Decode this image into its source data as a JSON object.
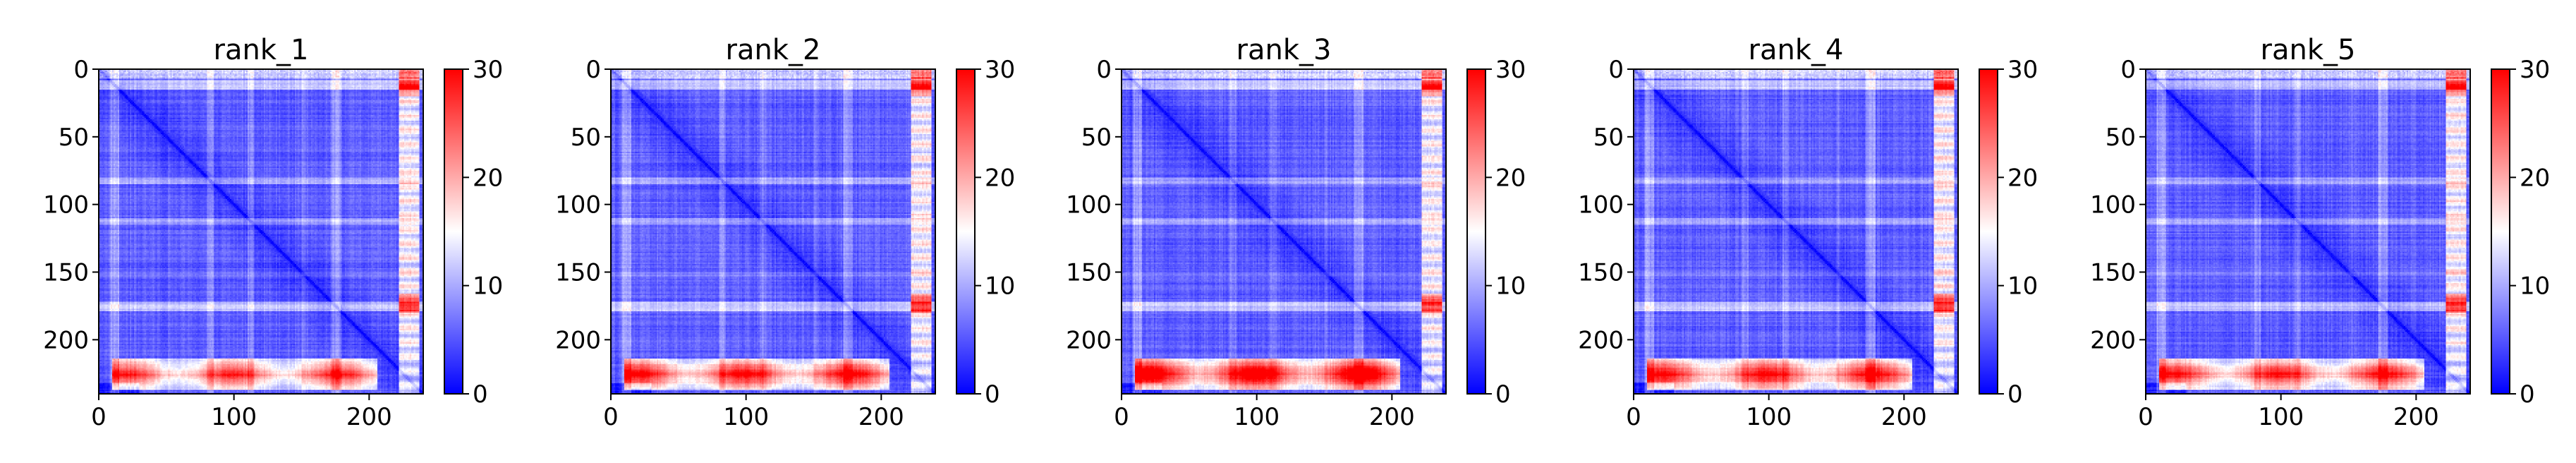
{
  "figure": {
    "panels": [
      {
        "title": "rank_1"
      },
      {
        "title": "rank_2"
      },
      {
        "title": "rank_3"
      },
      {
        "title": "rank_4"
      },
      {
        "title": "rank_5"
      }
    ],
    "colormap": {
      "name": "bwr",
      "low": "#0000ff",
      "mid": "#ffffff",
      "high": "#ff0000"
    }
  },
  "chart_data": [
    {
      "type": "heatmap",
      "title": "rank_1",
      "xlabel": "",
      "ylabel": "",
      "xlim": [
        0,
        240
      ],
      "ylim": [
        240,
        0
      ],
      "xticks": [
        0,
        100,
        200
      ],
      "yticks": [
        0,
        50,
        100,
        150,
        200
      ],
      "colorbar": {
        "range": [
          0,
          30
        ],
        "ticks": [
          0,
          10,
          20,
          30
        ]
      },
      "matrix_size": 240,
      "pattern": "pairwise distance map: blue diagonal (~0), red band rows ~215-235 reaching ~20-24, white stripes near rows 10, 80, 110, 175 and columns ~225-235"
    },
    {
      "type": "heatmap",
      "title": "rank_2",
      "xlabel": "",
      "ylabel": "",
      "xlim": [
        0,
        240
      ],
      "ylim": [
        240,
        0
      ],
      "xticks": [
        0,
        100,
        200
      ],
      "yticks": [
        0,
        50,
        100,
        150,
        200
      ],
      "colorbar": {
        "range": [
          0,
          30
        ],
        "ticks": [
          0,
          10,
          20,
          30
        ]
      },
      "matrix_size": 240,
      "pattern": "similar to rank_1 with slightly stronger red band near rows 220-235"
    },
    {
      "type": "heatmap",
      "title": "rank_3",
      "xlabel": "",
      "ylabel": "",
      "xlim": [
        0,
        240
      ],
      "ylim": [
        240,
        0
      ],
      "xticks": [
        0,
        100,
        200
      ],
      "yticks": [
        0,
        50,
        100,
        150,
        200
      ],
      "colorbar": {
        "range": [
          0,
          30
        ],
        "ticks": [
          0,
          10,
          20,
          30
        ]
      },
      "matrix_size": 240,
      "pattern": "strongest red band (~26-28) at rows 220-235"
    },
    {
      "type": "heatmap",
      "title": "rank_4",
      "xlabel": "",
      "ylabel": "",
      "xlim": [
        0,
        240
      ],
      "ylim": [
        240,
        0
      ],
      "xticks": [
        0,
        100,
        200
      ],
      "yticks": [
        0,
        50,
        100,
        150,
        200
      ],
      "colorbar": {
        "range": [
          0,
          30
        ],
        "ticks": [
          0,
          10,
          20,
          30
        ]
      },
      "matrix_size": 240,
      "pattern": "similar to rank_2"
    },
    {
      "type": "heatmap",
      "title": "rank_5",
      "xlabel": "",
      "ylabel": "",
      "xlim": [
        0,
        240
      ],
      "ylim": [
        240,
        0
      ],
      "xticks": [
        0,
        100,
        200
      ],
      "yticks": [
        0,
        50,
        100,
        150,
        200
      ],
      "colorbar": {
        "range": [
          0,
          30
        ],
        "ticks": [
          0,
          10,
          20,
          30
        ]
      },
      "matrix_size": 240,
      "pattern": "similar to rank_1 with red band rows 215-235"
    }
  ]
}
